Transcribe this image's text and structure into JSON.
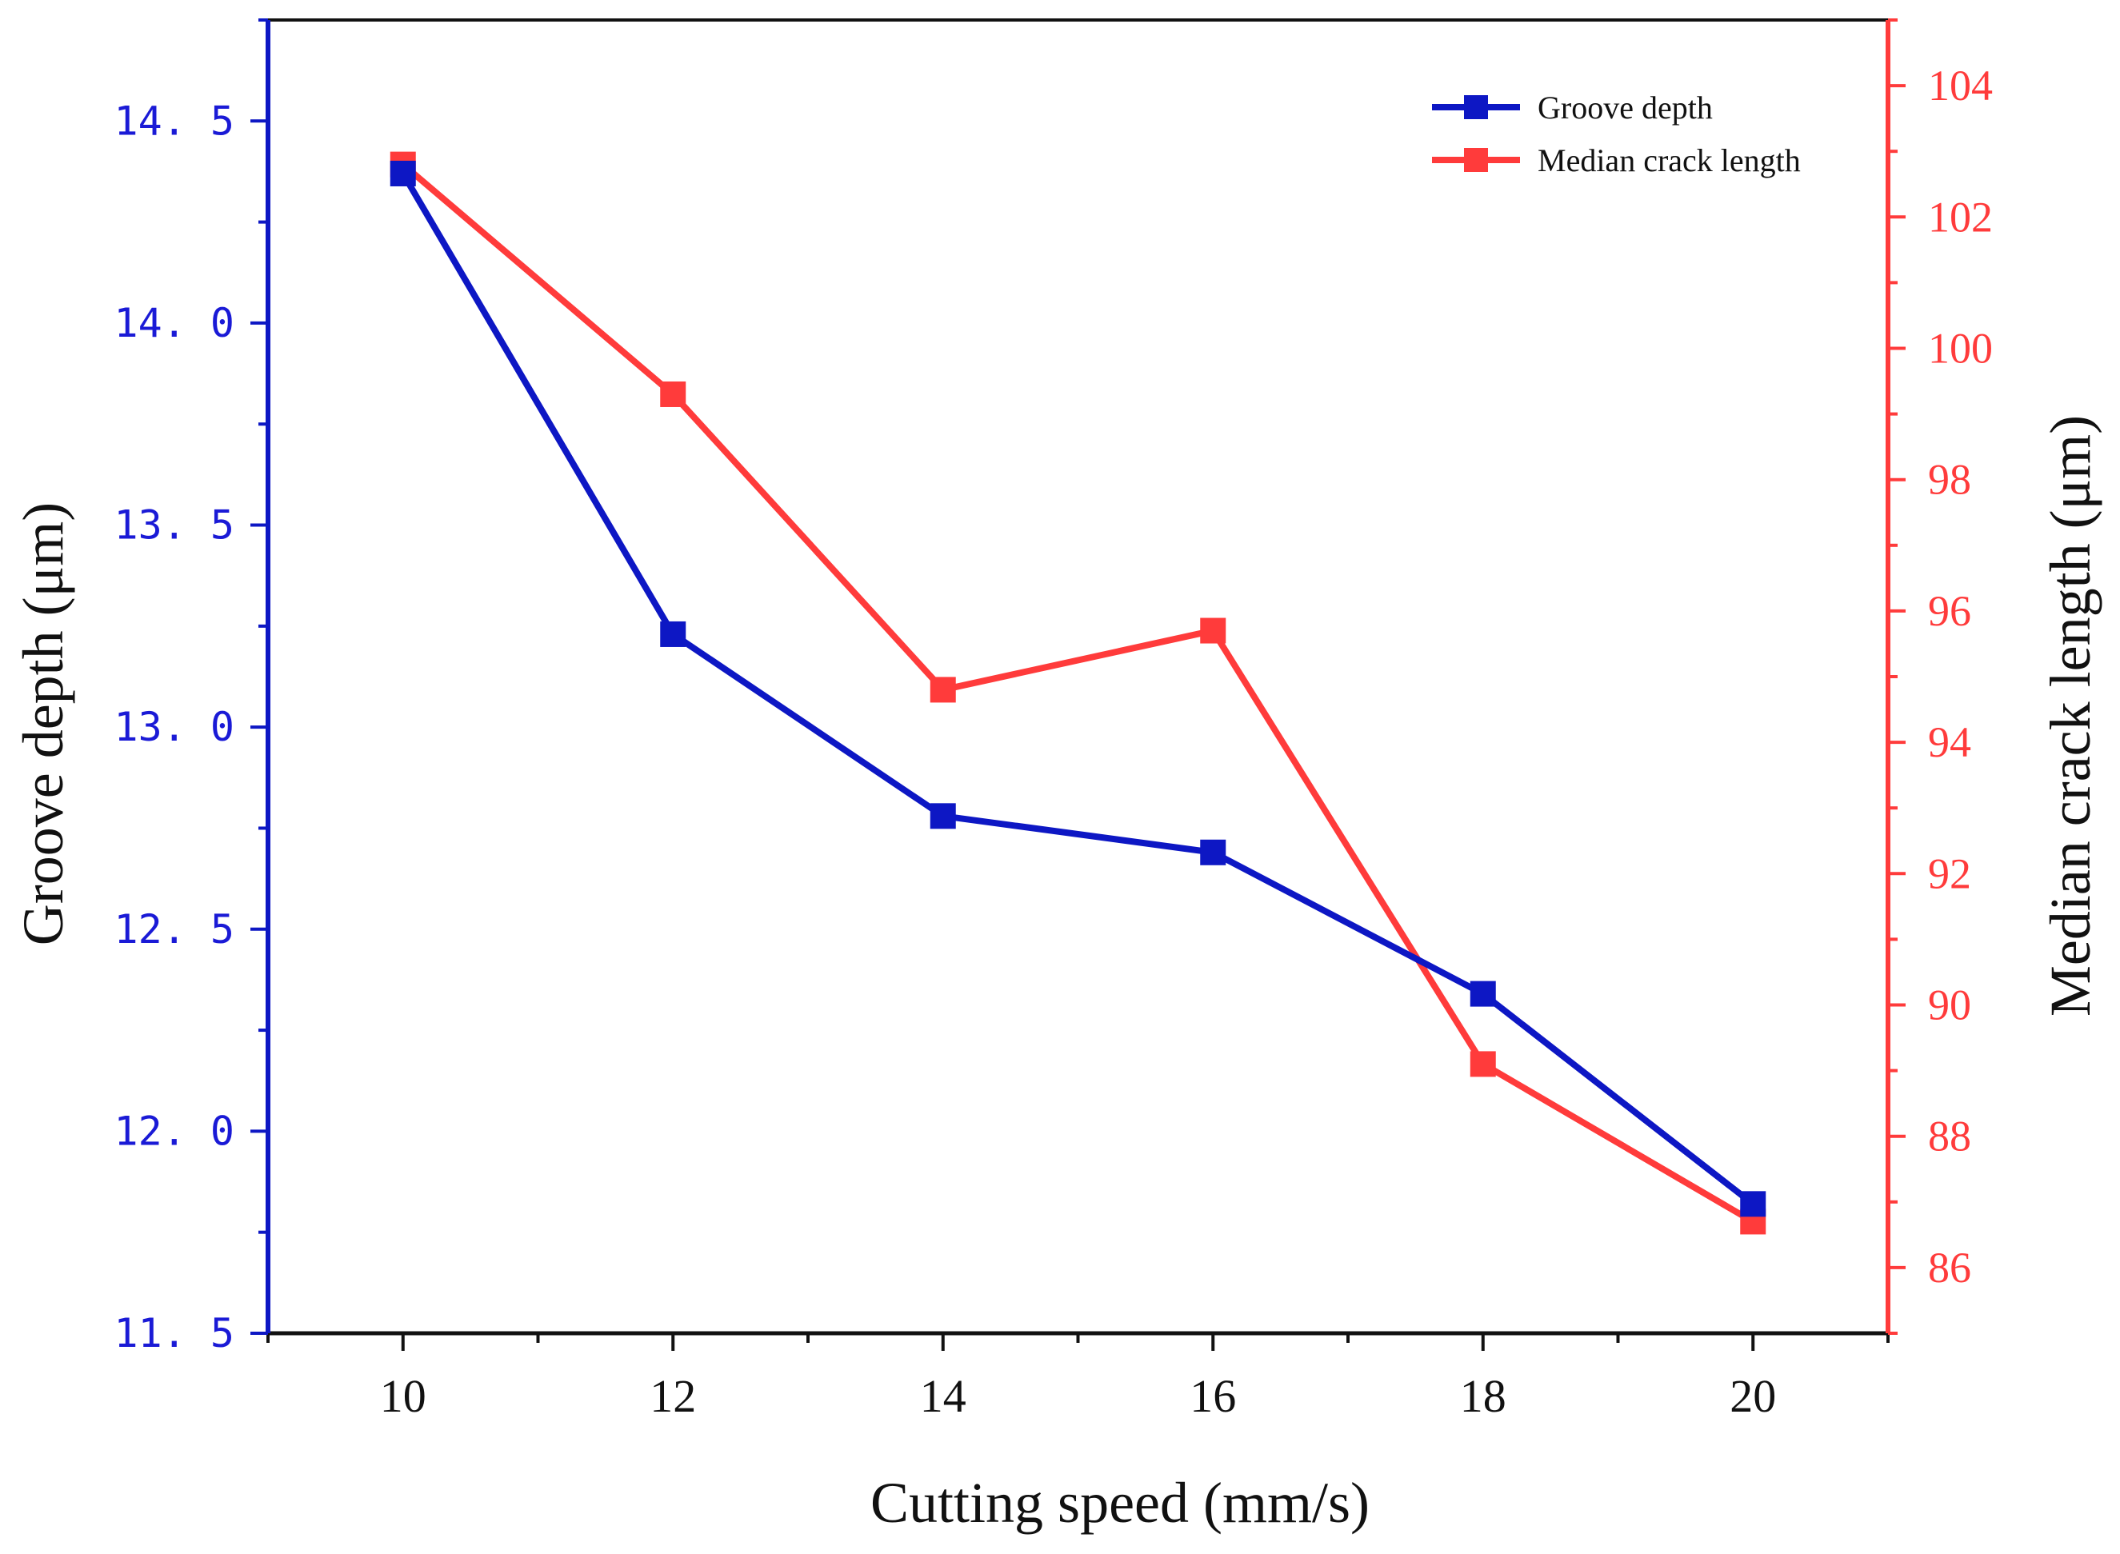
{
  "chart_data": {
    "type": "line",
    "title": "",
    "xlabel": "Cutting speed (mm/s)",
    "ylabel_left": "Groove depth (μm)",
    "ylabel_right": "Median crack length (μm)",
    "x": [
      10,
      12,
      14,
      16,
      18,
      20
    ],
    "x_tick_labels": [
      "10",
      "12",
      "14",
      "16",
      "18",
      "20"
    ],
    "xlim": [
      9,
      21
    ],
    "ylim_left": [
      11.5,
      14.75
    ],
    "ylim_right": [
      85,
      105
    ],
    "y_left_tick_values": [
      11.5,
      12.0,
      12.5,
      13.0,
      13.5,
      14.0,
      14.5
    ],
    "y_left_tick_labels": [
      "11. 5",
      "12. 0",
      "12. 5",
      "13. 0",
      "13. 5",
      "14. 0",
      "14. 5"
    ],
    "y_right_tick_values": [
      86,
      88,
      90,
      92,
      94,
      96,
      98,
      100,
      102,
      104
    ],
    "y_right_tick_labels": [
      "86",
      "88",
      "90",
      "92",
      "94",
      "96",
      "98",
      "100",
      "102",
      "104"
    ],
    "legend_position": "top-right",
    "grid": false,
    "series": [
      {
        "name": "Groove depth",
        "axis": "left",
        "color": "#0d17c4",
        "marker": "square",
        "values": [
          14.37,
          13.23,
          12.78,
          12.69,
          12.34,
          11.82
        ]
      },
      {
        "name": "Median crack length",
        "axis": "right",
        "color": "#ff3b3b",
        "marker": "square",
        "values": [
          102.8,
          99.3,
          94.8,
          95.7,
          89.1,
          86.7
        ]
      }
    ]
  }
}
